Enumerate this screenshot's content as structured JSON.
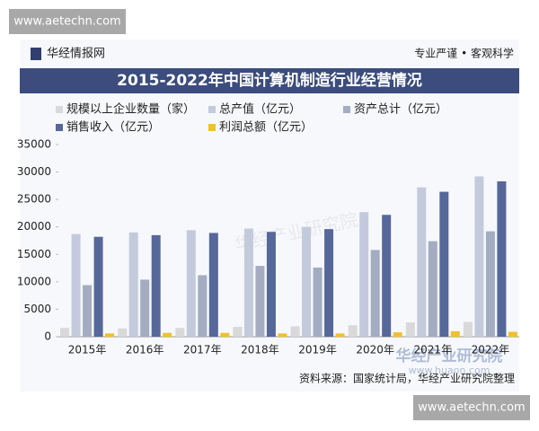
{
  "header": {
    "brand": "华经情报网",
    "slogan": "专业严谨 • 客观科学"
  },
  "watermarks": [
    "www.aetechn.com",
    "www.aetechn.com",
    "华经产业研究院",
    "www.huaon.com"
  ],
  "source": "资料来源：国家统计局，华经产业研究院整理",
  "chart_data": {
    "type": "bar",
    "title": "2015-2022年中国计算机制造行业经营情况",
    "categories": [
      "2015年",
      "2016年",
      "2017年",
      "2018年",
      "2019年",
      "2020年",
      "2021年",
      "2022年"
    ],
    "series": [
      {
        "name": "规模以上企业数量（家）",
        "color": "#d9d9d9",
        "values": [
          1600,
          1500,
          1600,
          1800,
          1900,
          2100,
          2600,
          2700
        ]
      },
      {
        "name": "总产值（亿元）",
        "color": "#c3cadb",
        "values": [
          18700,
          19000,
          19400,
          19700,
          20000,
          22700,
          27200,
          29200
        ]
      },
      {
        "name": "资产总计（亿元）",
        "color": "#a4acc2",
        "values": [
          9400,
          10400,
          11200,
          12900,
          12600,
          15800,
          17400,
          19200
        ]
      },
      {
        "name": "销售收入（亿元）",
        "color": "#56679a",
        "values": [
          18200,
          18500,
          18900,
          19100,
          19600,
          22200,
          26400,
          28300
        ]
      },
      {
        "name": "利润总额（亿元）",
        "color": "#f0c030",
        "values": [
          600,
          700,
          700,
          600,
          600,
          800,
          1000,
          900
        ]
      }
    ],
    "ylim": [
      0,
      35000
    ],
    "yticks": [
      0,
      5000,
      10000,
      15000,
      20000,
      25000,
      30000,
      35000
    ]
  }
}
